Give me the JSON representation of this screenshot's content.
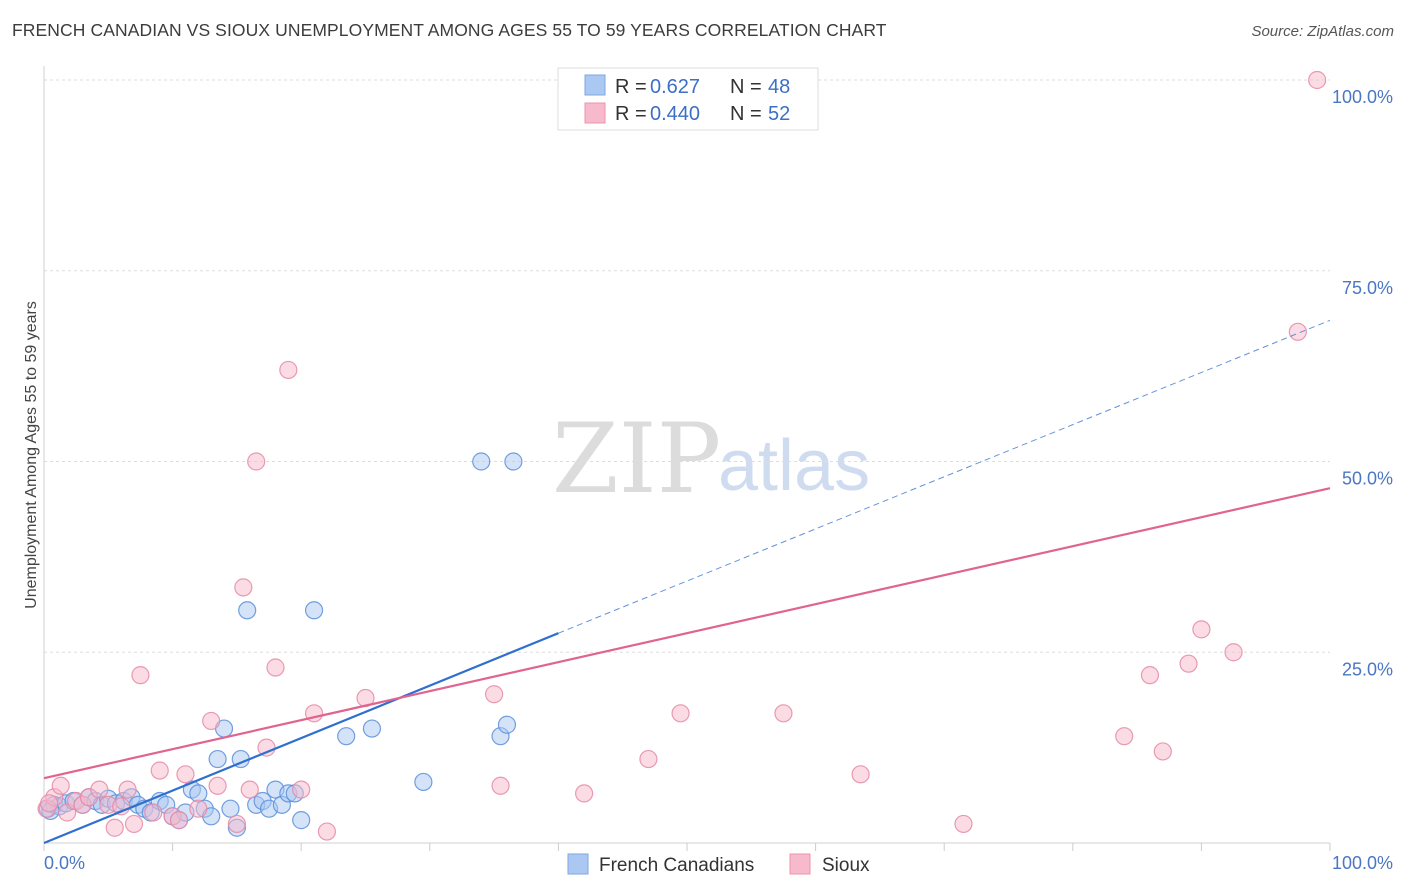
{
  "header": {
    "title": "FRENCH CANADIAN VS SIOUX UNEMPLOYMENT AMONG AGES 55 TO 59 YEARS CORRELATION CHART",
    "source": "Source: ZipAtlas.com"
  },
  "watermark": {
    "zip": "ZIP",
    "atlas": "atlas"
  },
  "legend": {
    "rows": [
      {
        "r_label": "R = ",
        "r_value": "0.627",
        "n_label": "N = ",
        "n_value": "48",
        "color": "#aac8f2"
      },
      {
        "r_label": "R = ",
        "r_value": "0.440",
        "n_label": "N = ",
        "n_value": "52",
        "color": "#f7b9cc"
      }
    ]
  },
  "bottom_legend": [
    {
      "label": "French Canadians",
      "color": "#aac8f2"
    },
    {
      "label": "Sioux",
      "color": "#f7b9cc"
    }
  ],
  "chart_data": {
    "type": "scatter",
    "ylabel": "Unemployment Among Ages 55 to 59 years",
    "xlim": [
      0,
      100
    ],
    "ylim": [
      0,
      100
    ],
    "x_tick_labels": [
      "0.0%",
      "100.0%"
    ],
    "y_tick_labels": [
      {
        "value": 100,
        "label": "100.0%"
      },
      {
        "value": 75,
        "label": "75.0%"
      },
      {
        "value": 50,
        "label": "50.0%"
      },
      {
        "value": 25,
        "label": "25.0%"
      }
    ],
    "grid": "horizontal dashed",
    "legend_position": "top-center",
    "series": [
      {
        "name": "French Canadians",
        "color": "#5b8fd9",
        "fill": "#aac8f2",
        "trend": {
          "x": [
            0,
            40
          ],
          "y": [
            0,
            27.5
          ],
          "dashed_extension_to": [
            100,
            68.5
          ],
          "color": "#2f6fce"
        },
        "points": [
          [
            0.3,
            4.5
          ],
          [
            0.8,
            5.0
          ],
          [
            1.2,
            4.8
          ],
          [
            1.7,
            5.2
          ],
          [
            2.3,
            5.5
          ],
          [
            3.0,
            5.0
          ],
          [
            3.5,
            6.0
          ],
          [
            4.0,
            5.5
          ],
          [
            4.5,
            5.0
          ],
          [
            5.0,
            5.8
          ],
          [
            5.6,
            5.2
          ],
          [
            6.2,
            5.5
          ],
          [
            6.8,
            6.0
          ],
          [
            7.3,
            5.0
          ],
          [
            7.8,
            4.5
          ],
          [
            8.3,
            4.0
          ],
          [
            9.0,
            5.5
          ],
          [
            9.5,
            5.0
          ],
          [
            10.0,
            3.5
          ],
          [
            10.5,
            3.0
          ],
          [
            11.0,
            4.0
          ],
          [
            11.5,
            7.0
          ],
          [
            12.0,
            6.5
          ],
          [
            12.5,
            4.5
          ],
          [
            13.0,
            3.5
          ],
          [
            13.5,
            11.0
          ],
          [
            14.0,
            15.0
          ],
          [
            14.5,
            4.5
          ],
          [
            15.0,
            2.0
          ],
          [
            15.3,
            11.0
          ],
          [
            15.8,
            30.5
          ],
          [
            16.5,
            5.0
          ],
          [
            17.0,
            5.5
          ],
          [
            17.5,
            4.5
          ],
          [
            18.0,
            7.0
          ],
          [
            18.5,
            5.0
          ],
          [
            19.0,
            6.5
          ],
          [
            19.5,
            6.5
          ],
          [
            20.0,
            3.0
          ],
          [
            21.0,
            30.5
          ],
          [
            23.5,
            14.0
          ],
          [
            25.5,
            15.0
          ],
          [
            29.5,
            8.0
          ],
          [
            34.0,
            50.0
          ],
          [
            35.5,
            14.0
          ],
          [
            36.0,
            15.5
          ],
          [
            36.5,
            50.0
          ],
          [
            0.5,
            4.2
          ]
        ]
      },
      {
        "name": "Sioux",
        "color": "#e58aa7",
        "fill": "#f7b9cc",
        "trend": {
          "x": [
            0,
            100
          ],
          "y": [
            8.5,
            46.5
          ],
          "color": "#e0648f"
        },
        "points": [
          [
            0.2,
            4.5
          ],
          [
            0.8,
            6.0
          ],
          [
            1.3,
            7.5
          ],
          [
            1.8,
            4.0
          ],
          [
            2.5,
            5.5
          ],
          [
            3.0,
            5.0
          ],
          [
            3.5,
            6.0
          ],
          [
            4.3,
            7.0
          ],
          [
            5.0,
            5.0
          ],
          [
            5.5,
            2.0
          ],
          [
            6.5,
            7.0
          ],
          [
            7.0,
            2.5
          ],
          [
            7.5,
            22.0
          ],
          [
            8.5,
            4.0
          ],
          [
            9.0,
            9.5
          ],
          [
            10.0,
            3.5
          ],
          [
            10.5,
            3.0
          ],
          [
            11.0,
            9.0
          ],
          [
            12.0,
            4.5
          ],
          [
            13.0,
            16.0
          ],
          [
            13.5,
            7.5
          ],
          [
            15.0,
            2.5
          ],
          [
            15.5,
            33.5
          ],
          [
            16.0,
            7.0
          ],
          [
            16.5,
            50.0
          ],
          [
            17.3,
            12.5
          ],
          [
            18.0,
            23.0
          ],
          [
            19.0,
            62.0
          ],
          [
            20.0,
            7.0
          ],
          [
            21.0,
            17.0
          ],
          [
            22.0,
            1.5
          ],
          [
            25.0,
            19.0
          ],
          [
            35.0,
            19.5
          ],
          [
            35.5,
            7.5
          ],
          [
            42.0,
            6.5
          ],
          [
            47.0,
            11.0
          ],
          [
            49.5,
            17.0
          ],
          [
            57.5,
            17.0
          ],
          [
            63.5,
            9.0
          ],
          [
            71.5,
            2.5
          ],
          [
            84.0,
            14.0
          ],
          [
            86.0,
            22.0
          ],
          [
            87.0,
            12.0
          ],
          [
            89.0,
            23.5
          ],
          [
            90.0,
            28.0
          ],
          [
            92.5,
            25.0
          ],
          [
            97.5,
            67.0
          ],
          [
            99.0,
            100.0
          ],
          [
            42.5,
            100.0
          ],
          [
            54.5,
            100.0
          ],
          [
            0.4,
            5.2
          ],
          [
            6.0,
            4.8
          ]
        ]
      }
    ]
  }
}
